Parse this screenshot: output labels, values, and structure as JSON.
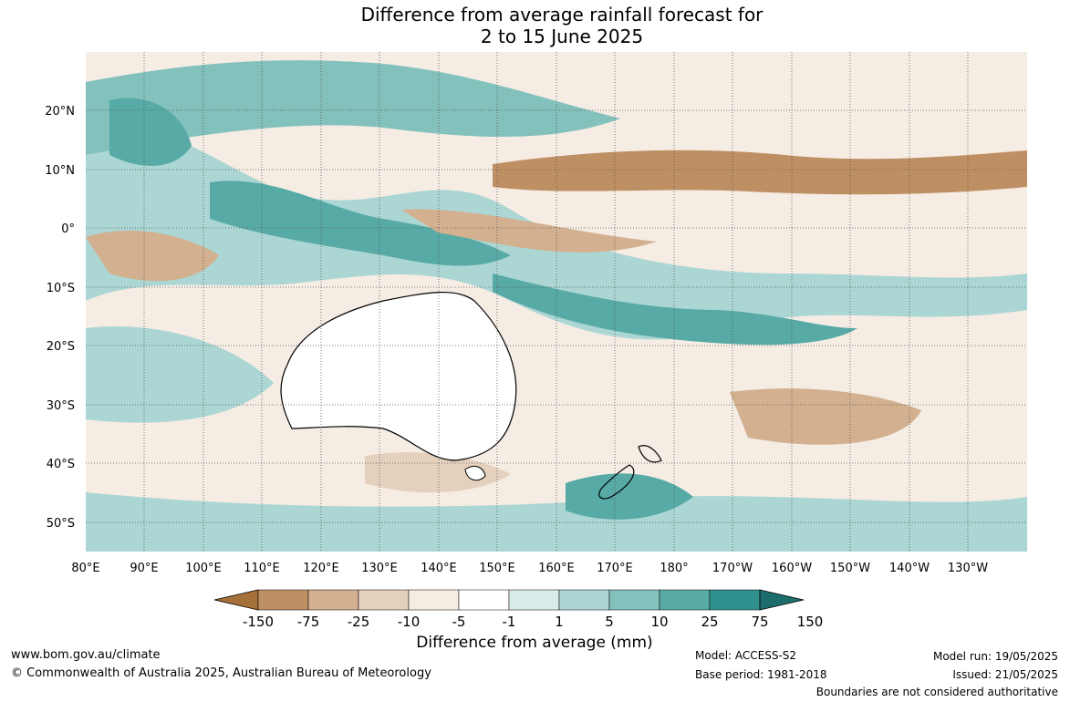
{
  "title": {
    "line1": "Difference from average rainfall forecast for",
    "line2": "2 to 15 June 2025"
  },
  "map": {
    "lat_labels": [
      "20°N",
      "10°N",
      "0°",
      "10°S",
      "20°S",
      "30°S",
      "40°S",
      "50°S"
    ],
    "lon_labels": [
      "80°E",
      "90°E",
      "100°E",
      "110°E",
      "120°E",
      "130°E",
      "140°E",
      "150°E",
      "160°E",
      "170°E",
      "180°",
      "170°W",
      "160°W",
      "150°W",
      "140°W",
      "130°W"
    ]
  },
  "colorbar": {
    "title": "Difference from average (mm)",
    "tick_labels": [
      "-150",
      "-75",
      "-25",
      "-10",
      "-5",
      "-1",
      "1",
      "5",
      "10",
      "25",
      "75",
      "150"
    ],
    "colors": [
      "#a6703a",
      "#bf8f64",
      "#d3b08f",
      "#e5d0bd",
      "#f5ece4",
      "#ffffff",
      "#d9ebe9",
      "#acd6d3",
      "#83c1bd",
      "#57aaa6",
      "#2f918d",
      "#1c6d6b"
    ]
  },
  "footer": {
    "url": "www.bom.gov.au/climate",
    "copyright": "© Commonwealth of Australia 2025, Australian Bureau of Meteorology",
    "model": "Model: ACCESS-S2",
    "base_period": "Base period: 1981-2018",
    "model_run": "Model run: 19/05/2025",
    "issued": "Issued: 21/05/2025",
    "disclaimer": "Boundaries are not considered authoritative"
  }
}
